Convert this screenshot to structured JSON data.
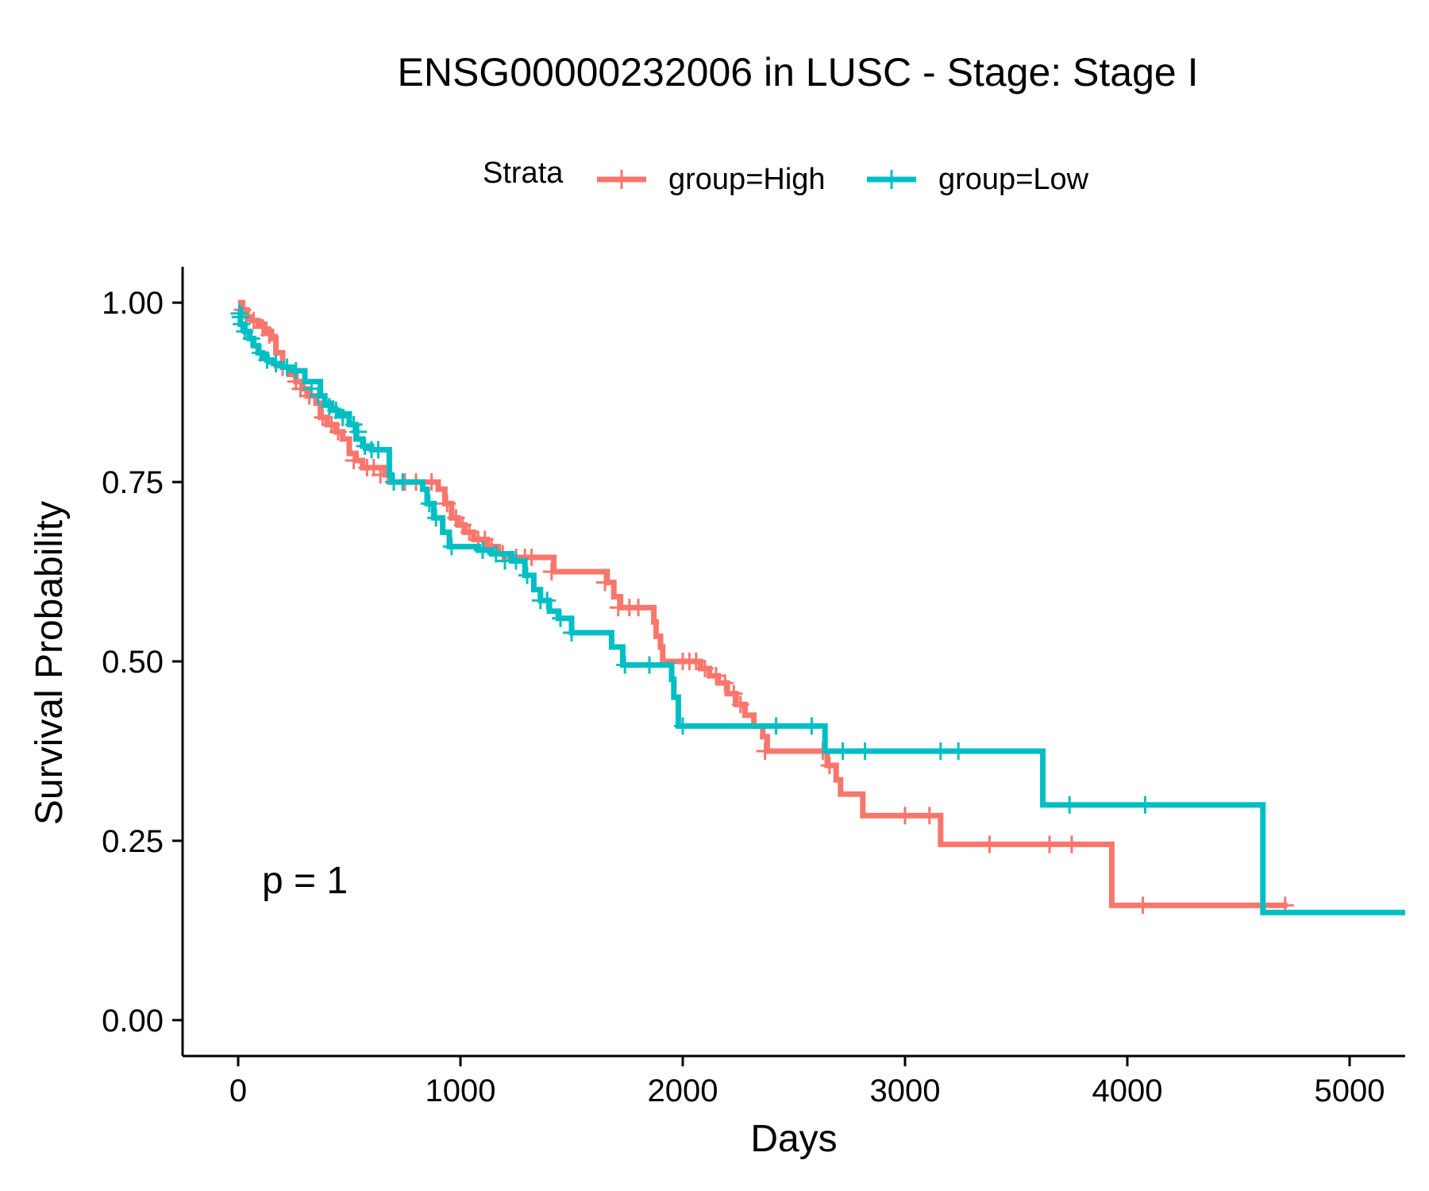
{
  "chart_data": {
    "type": "line",
    "title": "ENSG00000232006 in LUSC - Stage: Stage I",
    "xlabel": "Days",
    "ylabel": "Survival Probability",
    "xlim": [
      -250,
      5250
    ],
    "ylim": [
      -0.05,
      1.05
    ],
    "xticks": [
      0,
      1000,
      2000,
      3000,
      4000,
      5000
    ],
    "xtick_labels": [
      "0",
      "1000",
      "2000",
      "3000",
      "4000",
      "5000"
    ],
    "yticks": [
      0,
      0.25,
      0.5,
      0.75,
      1.0
    ],
    "ytick_labels": [
      "0.00",
      "0.25",
      "0.50",
      "0.75",
      "1.00"
    ],
    "legend_title": "Strata",
    "legend_position": "top",
    "annotation": "p = 1",
    "grid": false,
    "series": [
      {
        "name": "group=High",
        "color": "#F8766D",
        "steps": [
          [
            0,
            1.0
          ],
          [
            20,
            0.99
          ],
          [
            40,
            0.98
          ],
          [
            60,
            0.975
          ],
          [
            90,
            0.97
          ],
          [
            120,
            0.96
          ],
          [
            150,
            0.95
          ],
          [
            170,
            0.93
          ],
          [
            200,
            0.91
          ],
          [
            230,
            0.9
          ],
          [
            260,
            0.89
          ],
          [
            290,
            0.88
          ],
          [
            310,
            0.87
          ],
          [
            350,
            0.86
          ],
          [
            370,
            0.84
          ],
          [
            400,
            0.83
          ],
          [
            440,
            0.82
          ],
          [
            470,
            0.81
          ],
          [
            500,
            0.79
          ],
          [
            530,
            0.78
          ],
          [
            560,
            0.77
          ],
          [
            660,
            0.76
          ],
          [
            680,
            0.75
          ],
          [
            900,
            0.74
          ],
          [
            930,
            0.72
          ],
          [
            960,
            0.7
          ],
          [
            990,
            0.69
          ],
          [
            1020,
            0.68
          ],
          [
            1060,
            0.67
          ],
          [
            1120,
            0.66
          ],
          [
            1170,
            0.65
          ],
          [
            1220,
            0.645
          ],
          [
            1420,
            0.625
          ],
          [
            1660,
            0.61
          ],
          [
            1690,
            0.59
          ],
          [
            1720,
            0.575
          ],
          [
            1870,
            0.555
          ],
          [
            1880,
            0.535
          ],
          [
            1900,
            0.52
          ],
          [
            1910,
            0.5
          ],
          [
            2080,
            0.49
          ],
          [
            2120,
            0.48
          ],
          [
            2160,
            0.47
          ],
          [
            2200,
            0.455
          ],
          [
            2240,
            0.44
          ],
          [
            2280,
            0.425
          ],
          [
            2320,
            0.41
          ],
          [
            2360,
            0.395
          ],
          [
            2380,
            0.375
          ],
          [
            2650,
            0.355
          ],
          [
            2690,
            0.335
          ],
          [
            2710,
            0.315
          ],
          [
            2810,
            0.285
          ],
          [
            3160,
            0.245
          ],
          [
            3930,
            0.16
          ],
          [
            4720,
            0.16
          ]
        ],
        "censors": [
          [
            20,
            0.99
          ],
          [
            70,
            0.975
          ],
          [
            110,
            0.965
          ],
          [
            140,
            0.955
          ],
          [
            200,
            0.91
          ],
          [
            260,
            0.89
          ],
          [
            280,
            0.88
          ],
          [
            320,
            0.87
          ],
          [
            380,
            0.84
          ],
          [
            420,
            0.83
          ],
          [
            450,
            0.82
          ],
          [
            520,
            0.78
          ],
          [
            580,
            0.77
          ],
          [
            610,
            0.77
          ],
          [
            640,
            0.76
          ],
          [
            750,
            0.75
          ],
          [
            800,
            0.75
          ],
          [
            870,
            0.75
          ],
          [
            940,
            0.72
          ],
          [
            980,
            0.7
          ],
          [
            1010,
            0.69
          ],
          [
            1040,
            0.68
          ],
          [
            1080,
            0.67
          ],
          [
            1110,
            0.67
          ],
          [
            1140,
            0.66
          ],
          [
            1190,
            0.65
          ],
          [
            1250,
            0.645
          ],
          [
            1290,
            0.645
          ],
          [
            1320,
            0.645
          ],
          [
            1410,
            0.625
          ],
          [
            1650,
            0.61
          ],
          [
            1710,
            0.575
          ],
          [
            1760,
            0.575
          ],
          [
            1800,
            0.575
          ],
          [
            2000,
            0.5
          ],
          [
            2030,
            0.5
          ],
          [
            2060,
            0.5
          ],
          [
            2100,
            0.49
          ],
          [
            2150,
            0.48
          ],
          [
            2190,
            0.47
          ],
          [
            2230,
            0.455
          ],
          [
            2260,
            0.44
          ],
          [
            2370,
            0.375
          ],
          [
            2630,
            0.375
          ],
          [
            2660,
            0.355
          ],
          [
            3000,
            0.285
          ],
          [
            3110,
            0.285
          ],
          [
            3380,
            0.245
          ],
          [
            3650,
            0.245
          ],
          [
            3750,
            0.245
          ],
          [
            4070,
            0.16
          ],
          [
            4710,
            0.16
          ]
        ]
      },
      {
        "name": "group=Low",
        "color": "#00BFC4",
        "steps": [
          [
            0,
            0.99
          ],
          [
            10,
            0.97
          ],
          [
            30,
            0.96
          ],
          [
            50,
            0.95
          ],
          [
            70,
            0.94
          ],
          [
            90,
            0.93
          ],
          [
            110,
            0.925
          ],
          [
            130,
            0.92
          ],
          [
            160,
            0.915
          ],
          [
            200,
            0.91
          ],
          [
            250,
            0.905
          ],
          [
            300,
            0.89
          ],
          [
            370,
            0.87
          ],
          [
            390,
            0.86
          ],
          [
            420,
            0.85
          ],
          [
            450,
            0.845
          ],
          [
            500,
            0.83
          ],
          [
            530,
            0.81
          ],
          [
            560,
            0.8
          ],
          [
            600,
            0.795
          ],
          [
            680,
            0.76
          ],
          [
            690,
            0.75
          ],
          [
            830,
            0.74
          ],
          [
            850,
            0.72
          ],
          [
            880,
            0.7
          ],
          [
            920,
            0.68
          ],
          [
            950,
            0.66
          ],
          [
            1080,
            0.655
          ],
          [
            1140,
            0.65
          ],
          [
            1230,
            0.64
          ],
          [
            1290,
            0.62
          ],
          [
            1330,
            0.6
          ],
          [
            1360,
            0.585
          ],
          [
            1400,
            0.57
          ],
          [
            1440,
            0.56
          ],
          [
            1500,
            0.54
          ],
          [
            1680,
            0.52
          ],
          [
            1730,
            0.495
          ],
          [
            1950,
            0.475
          ],
          [
            1960,
            0.45
          ],
          [
            1980,
            0.41
          ],
          [
            2640,
            0.375
          ],
          [
            3620,
            0.3
          ],
          [
            4610,
            0.15
          ],
          [
            5250,
            0.15
          ]
        ],
        "censors": [
          [
            5,
            0.985
          ],
          [
            10,
            0.98
          ],
          [
            15,
            0.97
          ],
          [
            30,
            0.96
          ],
          [
            60,
            0.95
          ],
          [
            100,
            0.93
          ],
          [
            130,
            0.92
          ],
          [
            170,
            0.915
          ],
          [
            220,
            0.91
          ],
          [
            260,
            0.905
          ],
          [
            330,
            0.88
          ],
          [
            360,
            0.87
          ],
          [
            410,
            0.855
          ],
          [
            440,
            0.85
          ],
          [
            470,
            0.84
          ],
          [
            520,
            0.83
          ],
          [
            540,
            0.82
          ],
          [
            570,
            0.8
          ],
          [
            600,
            0.795
          ],
          [
            630,
            0.795
          ],
          [
            700,
            0.75
          ],
          [
            740,
            0.75
          ],
          [
            860,
            0.72
          ],
          [
            890,
            0.7
          ],
          [
            960,
            0.66
          ],
          [
            1100,
            0.655
          ],
          [
            1160,
            0.65
          ],
          [
            1200,
            0.64
          ],
          [
            1250,
            0.64
          ],
          [
            1300,
            0.62
          ],
          [
            1360,
            0.585
          ],
          [
            1390,
            0.585
          ],
          [
            1450,
            0.56
          ],
          [
            1500,
            0.54
          ],
          [
            1740,
            0.495
          ],
          [
            1850,
            0.495
          ],
          [
            2000,
            0.41
          ],
          [
            2420,
            0.41
          ],
          [
            2580,
            0.41
          ],
          [
            2720,
            0.375
          ],
          [
            2820,
            0.375
          ],
          [
            3160,
            0.375
          ],
          [
            3240,
            0.375
          ],
          [
            3740,
            0.3
          ],
          [
            4080,
            0.3
          ]
        ]
      }
    ]
  }
}
